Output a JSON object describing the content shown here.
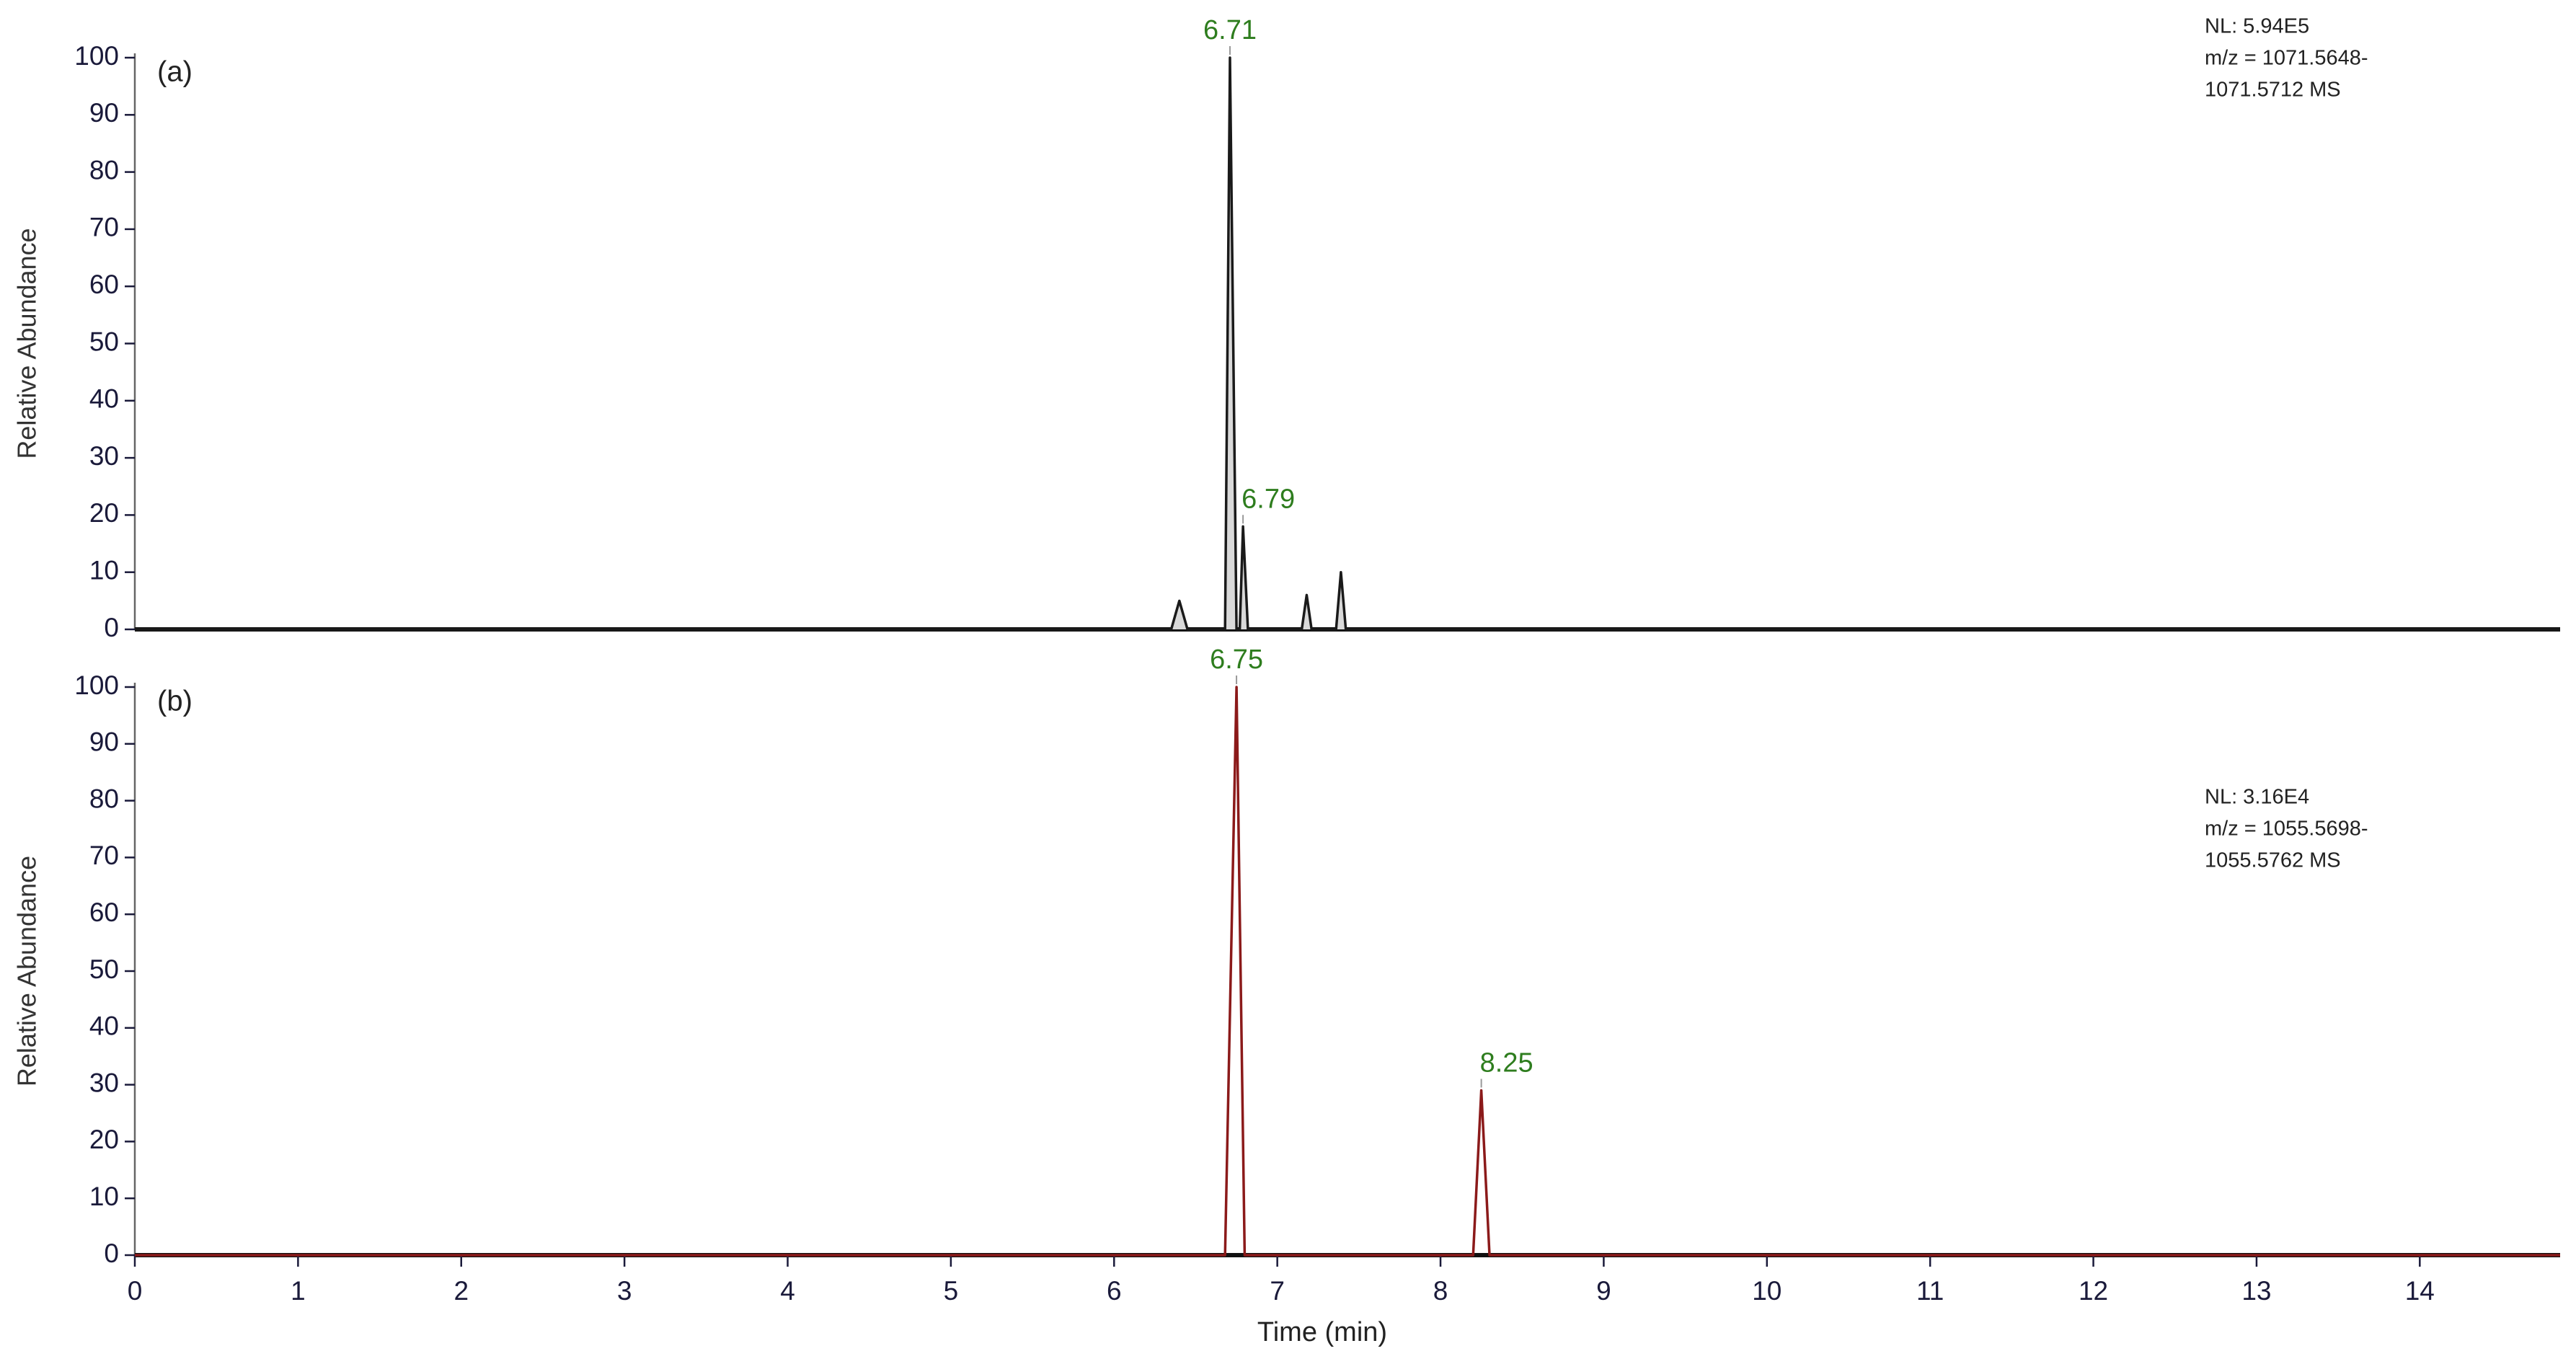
{
  "chart_data": [
    {
      "type": "line",
      "panel_label": "(a)",
      "y_label": "Relative Abundance",
      "annotations": [
        "NL: 5.94E5",
        "m/z = 1071.5648-",
        "1071.5712 MS"
      ],
      "x": [
        0,
        6.35,
        6.4,
        6.45,
        6.68,
        6.71,
        6.75,
        6.77,
        6.79,
        6.82,
        7.15,
        7.18,
        7.21,
        7.36,
        7.39,
        7.42,
        14.86
      ],
      "series": [
        {
          "color": "#1a1a1a",
          "fill": "#d9d9d9",
          "values": [
            0,
            0,
            5,
            0,
            0,
            100,
            0,
            0,
            18,
            0,
            0,
            6,
            0,
            0,
            10,
            0,
            0
          ]
        }
      ],
      "peaks": [
        {
          "x": 6.71,
          "y": 100
        },
        {
          "x": 6.79,
          "y": 18
        }
      ],
      "peak_color": "#2e7d1e",
      "xlim": [
        0,
        14.86
      ],
      "ylim": [
        0,
        100
      ],
      "yticks": [
        0,
        10,
        20,
        30,
        40,
        50,
        60,
        70,
        80,
        90,
        100
      ]
    },
    {
      "type": "line",
      "panel_label": "(b)",
      "y_label": "Relative Abundance",
      "x_label": "Time (min)",
      "annotations": [
        "NL: 3.16E4",
        "m/z = 1055.5698-",
        "1055.5762 MS"
      ],
      "x": [
        0,
        6.68,
        6.75,
        6.8,
        8.2,
        8.25,
        8.3,
        14.86
      ],
      "series": [
        {
          "color": "#8b1a1a",
          "values": [
            0,
            0,
            100,
            0,
            0,
            29,
            0,
            0
          ]
        }
      ],
      "peaks": [
        {
          "x": 6.75,
          "y": 100
        },
        {
          "x": 8.25,
          "y": 29
        }
      ],
      "peak_color": "#2e7d1e",
      "xlim": [
        0,
        14.86
      ],
      "ylim": [
        0,
        100
      ],
      "xticks": [
        0,
        1,
        2,
        3,
        4,
        5,
        6,
        7,
        8,
        9,
        10,
        11,
        12,
        13,
        14
      ],
      "yticks": [
        0,
        10,
        20,
        30,
        40,
        50,
        60,
        70,
        80,
        90,
        100
      ]
    }
  ]
}
